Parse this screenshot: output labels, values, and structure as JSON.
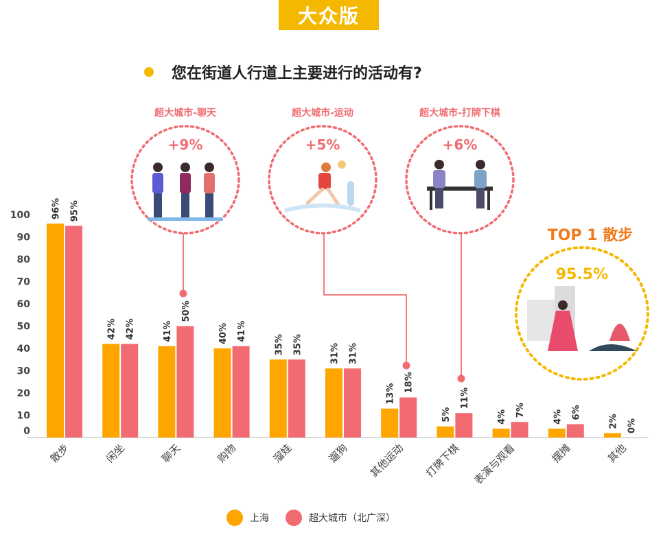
{
  "header": {
    "badge": "大众版"
  },
  "question": "您在街道人行道上主要进行的活动有?",
  "callouts": [
    {
      "title": "超大城市-聊天",
      "value": "+9%"
    },
    {
      "title": "超大城市-运动",
      "value": "+5%"
    },
    {
      "title": "超大城市-打牌下棋",
      "value": "+6%"
    }
  ],
  "top": {
    "label": "TOP 1 散步",
    "value": "95.5%"
  },
  "colors": {
    "shanghai": "#FFA500",
    "megacity": "#F36B72",
    "accent": "#F5B800",
    "callout": "#F06C72"
  },
  "chart_data": {
    "type": "bar",
    "categories": [
      "散步",
      "闲坐",
      "聊天",
      "购物",
      "溜娃",
      "遛狗",
      "其他运动",
      "打牌下棋",
      "表演与观看",
      "摆摊",
      "其他"
    ],
    "series": [
      {
        "name": "上海",
        "values": [
          96,
          42,
          41,
          40,
          35,
          31,
          13,
          5,
          4,
          4,
          2
        ],
        "labels": [
          "96%",
          "42%",
          "41%",
          "40%",
          "35%",
          "31%",
          "13%",
          "5%",
          "4%",
          "4%",
          "2%"
        ]
      },
      {
        "name": "超大城市（北广深）",
        "values": [
          95,
          42,
          50,
          41,
          35,
          31,
          18,
          11,
          7,
          6,
          0
        ],
        "labels": [
          "95%",
          "42%",
          "50%",
          "41%",
          "35%",
          "31%",
          "18%",
          "11%",
          "7%",
          "6%",
          "0%"
        ]
      }
    ],
    "yticks": [
      "0",
      "10",
      "20",
      "30",
      "40",
      "50",
      "60",
      "70",
      "80",
      "90",
      "100"
    ],
    "ylim": [
      0,
      100
    ]
  }
}
